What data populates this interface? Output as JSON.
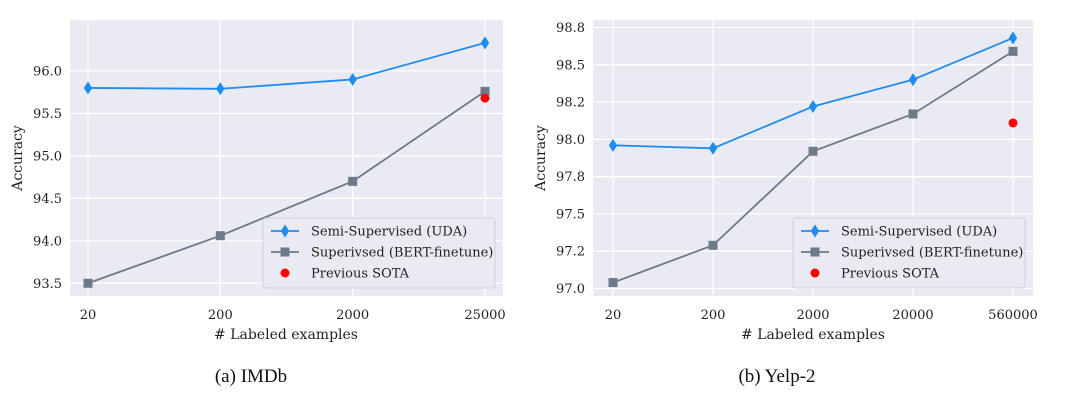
{
  "chart_data": [
    {
      "type": "line",
      "caption": "(a) IMDb",
      "xlabel": "# Labeled examples",
      "ylabel": "Accuracy",
      "x": [
        "20",
        "200",
        "2000",
        "25000"
      ],
      "ylim": [
        93.35,
        96.6
      ],
      "yticks": [
        "93.5",
        "94.0",
        "94.5",
        "95.0",
        "95.5",
        "96.0"
      ],
      "ytick_values": [
        93.5,
        94.0,
        94.5,
        95.0,
        95.5,
        96.0
      ],
      "grid": true,
      "legend_position": "bottom-right",
      "series": [
        {
          "name": "Semi-Supervised (UDA)",
          "values": [
            95.8,
            95.79,
            95.9,
            96.33
          ],
          "color": "#1f8cf0",
          "marker": "diamond"
        },
        {
          "name": "Superivsed (BERT-finetune)",
          "values": [
            93.5,
            94.06,
            94.7,
            95.76
          ],
          "color": "#6d7a8a",
          "marker": "square"
        }
      ],
      "points": [
        {
          "name": "Previous SOTA",
          "x": "25000",
          "value": 95.68,
          "color": "#ff0000",
          "marker": "circle"
        }
      ]
    },
    {
      "type": "line",
      "caption": "(b) Yelp-2",
      "xlabel": "# Labeled examples",
      "ylabel": "Accuracy",
      "x": [
        "20",
        "200",
        "2000",
        "20000",
        "560000"
      ],
      "ylim": [
        96.95,
        98.8
      ],
      "yticks": [
        "97.0",
        "97.2",
        "97.5",
        "97.8",
        "98.0",
        "98.2",
        "98.5",
        "98.8"
      ],
      "ytick_values": [
        97.0,
        97.25,
        97.5,
        97.75,
        98.0,
        98.25,
        98.5,
        98.75
      ],
      "grid": true,
      "legend_position": "bottom-right",
      "series": [
        {
          "name": "Semi-Supervised (UDA)",
          "values": [
            97.96,
            97.94,
            98.22,
            98.4,
            98.68
          ],
          "color": "#1f8cf0",
          "marker": "diamond"
        },
        {
          "name": "Superivsed (BERT-finetune)",
          "values": [
            97.04,
            97.29,
            97.92,
            98.17,
            98.59
          ],
          "color": "#6d7a8a",
          "marker": "square"
        }
      ],
      "points": [
        {
          "name": "Previous SOTA",
          "x": "560000",
          "value": 98.11,
          "color": "#ff0000",
          "marker": "circle"
        }
      ]
    }
  ]
}
